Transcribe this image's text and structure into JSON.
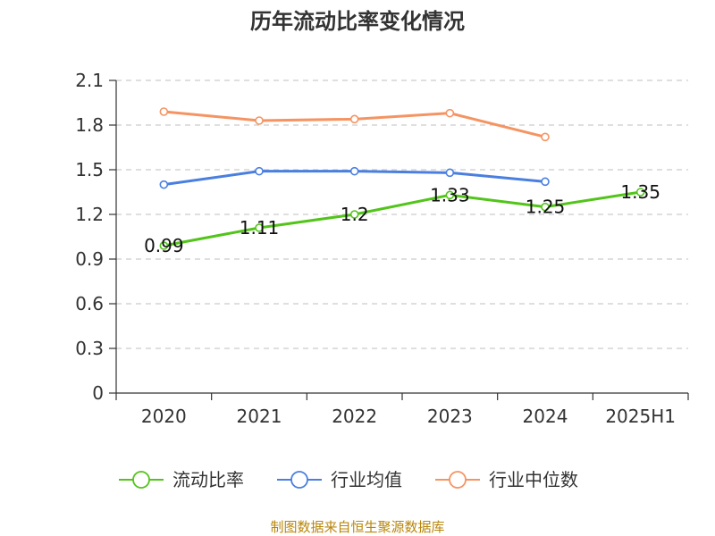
{
  "title": "历年流动比率变化情况",
  "source": "制图数据来自恒生聚源数据库",
  "chart_data": {
    "type": "line",
    "title": "历年流动比率变化情况",
    "categories": [
      "2020",
      "2021",
      "2022",
      "2023",
      "2024",
      "2025H1"
    ],
    "y_ticks": [
      "0",
      "0.3",
      "0.6",
      "0.9",
      "1.2",
      "1.5",
      "1.8",
      "2.1"
    ],
    "ylim": [
      0,
      2.1
    ],
    "grid": true,
    "legend_position": "bottom",
    "series": [
      {
        "name": "流动比率",
        "color": "#52c41a",
        "values": [
          0.99,
          1.11,
          1.2,
          1.33,
          1.25,
          1.35
        ],
        "labels": [
          "0.99",
          "1.11",
          "1.2",
          "1.33",
          "1.25",
          "1.35"
        ]
      },
      {
        "name": "行业均值",
        "color": "#4a7fe0",
        "values": [
          1.4,
          1.49,
          1.49,
          1.48,
          1.42,
          null
        ]
      },
      {
        "name": "行业中位数",
        "color": "#f59462",
        "values": [
          1.89,
          1.83,
          1.84,
          1.88,
          1.72,
          null
        ]
      }
    ]
  }
}
